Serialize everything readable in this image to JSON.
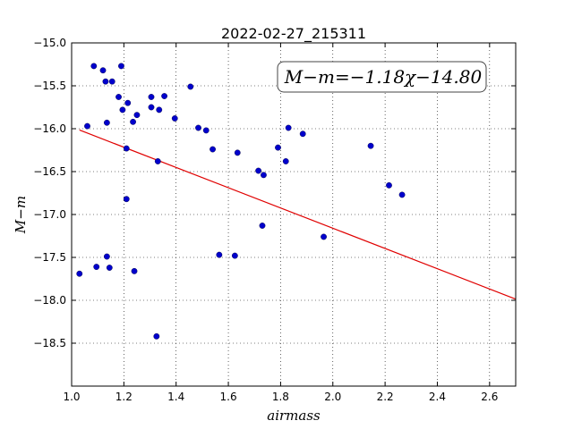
{
  "chart_data": {
    "type": "scatter",
    "title": "2022-02-27_215311",
    "xlabel": "airmass",
    "ylabel": "M−m",
    "xlim": [
      1.0,
      2.7
    ],
    "ylim": [
      -19.0,
      -15.0
    ],
    "y_inverted": true,
    "grid": true,
    "x_ticks": [
      "1.0",
      "1.2",
      "1.4",
      "1.6",
      "1.8",
      "2.0",
      "2.2",
      "2.4",
      "2.6"
    ],
    "y_ticks": [
      "−15.0",
      "−15.5",
      "−16.0",
      "−16.5",
      "−17.0",
      "−17.5",
      "−18.0",
      "−18.5"
    ],
    "annotation": "M−m=−1.18χ−14.80",
    "fit": {
      "slope": -1.18,
      "intercept": -14.8,
      "x_range": [
        1.03,
        2.7
      ],
      "color": "#e00000"
    },
    "point_color": "#0000cc",
    "points": [
      [
        1.03,
        -17.69
      ],
      [
        1.06,
        -15.97
      ],
      [
        1.085,
        -15.27
      ],
      [
        1.095,
        -17.61
      ],
      [
        1.12,
        -15.32
      ],
      [
        1.13,
        -15.45
      ],
      [
        1.135,
        -17.49
      ],
      [
        1.135,
        -15.93
      ],
      [
        1.145,
        -17.62
      ],
      [
        1.155,
        -15.45
      ],
      [
        1.18,
        -15.63
      ],
      [
        1.19,
        -15.27
      ],
      [
        1.195,
        -15.78
      ],
      [
        1.21,
        -16.23
      ],
      [
        1.21,
        -16.82
      ],
      [
        1.215,
        -15.7
      ],
      [
        1.235,
        -15.92
      ],
      [
        1.24,
        -17.66
      ],
      [
        1.25,
        -15.84
      ],
      [
        1.305,
        -15.63
      ],
      [
        1.305,
        -15.75
      ],
      [
        1.325,
        -18.42
      ],
      [
        1.33,
        -16.38
      ],
      [
        1.335,
        -15.78
      ],
      [
        1.355,
        -15.62
      ],
      [
        1.395,
        -15.88
      ],
      [
        1.455,
        -15.51
      ],
      [
        1.485,
        -15.99
      ],
      [
        1.515,
        -16.02
      ],
      [
        1.54,
        -16.24
      ],
      [
        1.565,
        -17.47
      ],
      [
        1.625,
        -17.48
      ],
      [
        1.635,
        -16.28
      ],
      [
        1.715,
        -16.49
      ],
      [
        1.735,
        -16.54
      ],
      [
        1.73,
        -17.13
      ],
      [
        1.79,
        -16.22
      ],
      [
        1.82,
        -16.38
      ],
      [
        1.83,
        -15.99
      ],
      [
        1.885,
        -16.06
      ],
      [
        1.965,
        -17.26
      ],
      [
        2.145,
        -16.2
      ],
      [
        2.215,
        -16.66
      ],
      [
        2.265,
        -16.77
      ]
    ]
  }
}
